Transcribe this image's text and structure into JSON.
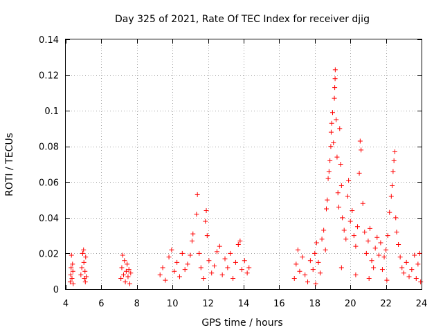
{
  "chart_data": {
    "type": "scatter",
    "title": "Day 325 of 2021, Rate Of TEC Index for receiver djig",
    "xlabel": "GPS time / hours",
    "ylabel": "ROTI / TECUs",
    "xlim": [
      4,
      24
    ],
    "ylim": [
      0,
      0.14
    ],
    "x_ticks": [
      4,
      6,
      8,
      10,
      12,
      14,
      16,
      18,
      20,
      22,
      24
    ],
    "x_tick_labels": [
      "4",
      "6",
      "8",
      "10",
      "12",
      "14",
      "16",
      "18",
      "20",
      "22",
      "24"
    ],
    "y_ticks": [
      0,
      0.02,
      0.04,
      0.06,
      0.08,
      0.1,
      0.12,
      0.14
    ],
    "y_tick_labels": [
      "0",
      "0.02",
      "0.04",
      "0.06",
      "0.08",
      "0.1",
      "0.12",
      "0.14"
    ],
    "grid": true,
    "marker": "plus",
    "color": "#ff0000",
    "series": [
      {
        "name": "ROTI",
        "points": [
          [
            4.25,
            0.004
          ],
          [
            4.28,
            0.008
          ],
          [
            4.3,
            0.012
          ],
          [
            4.32,
            0.019
          ],
          [
            4.35,
            0.006
          ],
          [
            4.38,
            0.014
          ],
          [
            4.4,
            0.01
          ],
          [
            4.42,
            0.003
          ],
          [
            4.85,
            0.008
          ],
          [
            4.9,
            0.012
          ],
          [
            4.95,
            0.02
          ],
          [
            5.0,
            0.022
          ],
          [
            5.02,
            0.015
          ],
          [
            5.05,
            0.006
          ],
          [
            5.08,
            0.01
          ],
          [
            5.1,
            0.004
          ],
          [
            5.12,
            0.018
          ],
          [
            5.15,
            0.007
          ],
          [
            7.1,
            0.006
          ],
          [
            7.15,
            0.012
          ],
          [
            7.2,
            0.019
          ],
          [
            7.25,
            0.008
          ],
          [
            7.3,
            0.016
          ],
          [
            7.35,
            0.004
          ],
          [
            7.4,
            0.01
          ],
          [
            7.45,
            0.014
          ],
          [
            7.5,
            0.007
          ],
          [
            7.55,
            0.011
          ],
          [
            7.6,
            0.003
          ],
          [
            7.65,
            0.009
          ],
          [
            9.3,
            0.008
          ],
          [
            9.45,
            0.012
          ],
          [
            9.6,
            0.005
          ],
          [
            9.8,
            0.018
          ],
          [
            9.95,
            0.022
          ],
          [
            10.1,
            0.01
          ],
          [
            10.25,
            0.015
          ],
          [
            10.4,
            0.007
          ],
          [
            10.55,
            0.02
          ],
          [
            10.7,
            0.011
          ],
          [
            10.85,
            0.014
          ],
          [
            11.0,
            0.019
          ],
          [
            11.1,
            0.027
          ],
          [
            11.15,
            0.031
          ],
          [
            11.35,
            0.042
          ],
          [
            11.4,
            0.053
          ],
          [
            11.5,
            0.02
          ],
          [
            11.6,
            0.012
          ],
          [
            11.75,
            0.006
          ],
          [
            11.85,
            0.038
          ],
          [
            11.9,
            0.044
          ],
          [
            11.95,
            0.03
          ],
          [
            12.05,
            0.016
          ],
          [
            12.2,
            0.009
          ],
          [
            12.35,
            0.013
          ],
          [
            12.5,
            0.021
          ],
          [
            12.65,
            0.024
          ],
          [
            12.8,
            0.008
          ],
          [
            12.95,
            0.017
          ],
          [
            13.1,
            0.012
          ],
          [
            13.25,
            0.02
          ],
          [
            13.4,
            0.006
          ],
          [
            13.55,
            0.015
          ],
          [
            13.7,
            0.025
          ],
          [
            13.8,
            0.027
          ],
          [
            13.9,
            0.011
          ],
          [
            14.05,
            0.016
          ],
          [
            14.2,
            0.009
          ],
          [
            14.3,
            0.012
          ],
          [
            16.85,
            0.006
          ],
          [
            16.95,
            0.014
          ],
          [
            17.05,
            0.022
          ],
          [
            17.15,
            0.01
          ],
          [
            17.3,
            0.018
          ],
          [
            17.45,
            0.008
          ],
          [
            17.6,
            0.004
          ],
          [
            17.75,
            0.016
          ],
          [
            17.9,
            0.011
          ],
          [
            18.0,
            0.02
          ],
          [
            18.1,
            0.026
          ],
          [
            18.2,
            0.015
          ],
          [
            18.3,
            0.009
          ],
          [
            18.4,
            0.028
          ],
          [
            18.5,
            0.033
          ],
          [
            18.6,
            0.022
          ],
          [
            18.65,
            0.045
          ],
          [
            18.7,
            0.05
          ],
          [
            18.75,
            0.062
          ],
          [
            18.8,
            0.066
          ],
          [
            18.85,
            0.072
          ],
          [
            18.9,
            0.08
          ],
          [
            18.92,
            0.088
          ],
          [
            18.95,
            0.093
          ],
          [
            19.0,
            0.099
          ],
          [
            19.05,
            0.082
          ],
          [
            19.1,
            0.107
          ],
          [
            19.12,
            0.113
          ],
          [
            19.14,
            0.118
          ],
          [
            19.15,
            0.123
          ],
          [
            19.2,
            0.095
          ],
          [
            19.25,
            0.074
          ],
          [
            19.3,
            0.054
          ],
          [
            19.35,
            0.046
          ],
          [
            19.4,
            0.09
          ],
          [
            19.45,
            0.07
          ],
          [
            19.5,
            0.058
          ],
          [
            19.55,
            0.04
          ],
          [
            19.65,
            0.033
          ],
          [
            19.75,
            0.028
          ],
          [
            19.85,
            0.052
          ],
          [
            19.9,
            0.061
          ],
          [
            20.0,
            0.038
          ],
          [
            20.1,
            0.044
          ],
          [
            20.2,
            0.03
          ],
          [
            20.3,
            0.024
          ],
          [
            20.4,
            0.035
          ],
          [
            20.5,
            0.065
          ],
          [
            20.55,
            0.083
          ],
          [
            20.6,
            0.078
          ],
          [
            20.7,
            0.048
          ],
          [
            20.8,
            0.032
          ],
          [
            20.9,
            0.02
          ],
          [
            21.0,
            0.027
          ],
          [
            21.1,
            0.034
          ],
          [
            21.2,
            0.016
          ],
          [
            21.3,
            0.012
          ],
          [
            21.4,
            0.023
          ],
          [
            21.5,
            0.029
          ],
          [
            21.6,
            0.019
          ],
          [
            21.7,
            0.026
          ],
          [
            21.8,
            0.011
          ],
          [
            21.9,
            0.018
          ],
          [
            22.0,
            0.022
          ],
          [
            22.1,
            0.03
          ],
          [
            22.2,
            0.043
          ],
          [
            22.3,
            0.052
          ],
          [
            22.35,
            0.058
          ],
          [
            22.4,
            0.066
          ],
          [
            22.45,
            0.072
          ],
          [
            22.5,
            0.077
          ],
          [
            22.55,
            0.04
          ],
          [
            22.6,
            0.032
          ],
          [
            22.7,
            0.025
          ],
          [
            22.8,
            0.018
          ],
          [
            22.9,
            0.012
          ],
          [
            23.0,
            0.009
          ],
          [
            23.15,
            0.015
          ],
          [
            23.3,
            0.007
          ],
          [
            23.45,
            0.011
          ],
          [
            23.6,
            0.019
          ],
          [
            23.7,
            0.006
          ],
          [
            23.8,
            0.014
          ],
          [
            23.9,
            0.02
          ],
          [
            23.95,
            0.004
          ],
          [
            18.05,
            0.003
          ],
          [
            19.5,
            0.012
          ],
          [
            20.3,
            0.008
          ],
          [
            21.05,
            0.006
          ],
          [
            22.05,
            0.005
          ]
        ]
      }
    ]
  }
}
